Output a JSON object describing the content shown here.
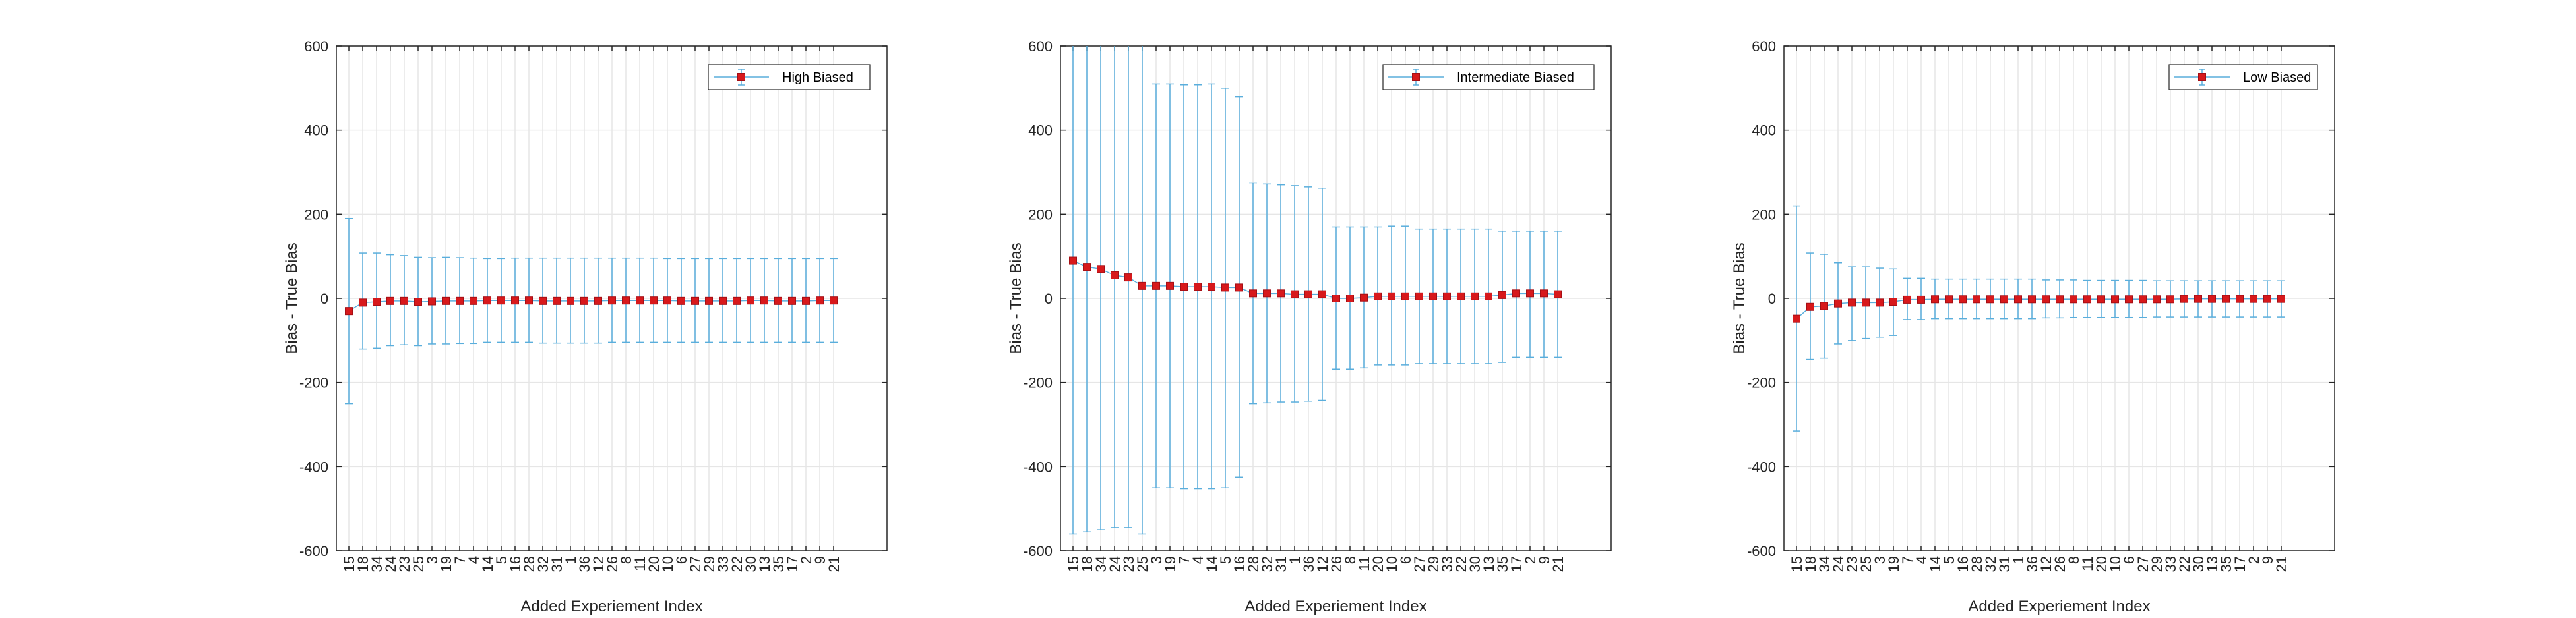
{
  "figure": {
    "background": "#ffffff"
  },
  "style": {
    "grid_color": "#e6e6e6",
    "axis_color": "#262626",
    "marker_color": "#d7191c",
    "marker_edge": "#a50f15",
    "errorbar_color": "#5aaedc",
    "line_color": "#5aaedc"
  },
  "chart_data": [
    {
      "type": "line",
      "xlabel": "Added Experiement Index",
      "ylabel": "Bias - True Bias",
      "ylim": [
        -600,
        600
      ],
      "yticks": [
        -600,
        -400,
        -200,
        0,
        200,
        400,
        600
      ],
      "grid": true,
      "legend": "top-right",
      "categories": [
        "15",
        "18",
        "34",
        "24",
        "23",
        "25",
        "3",
        "19",
        "7",
        "4",
        "14",
        "5",
        "16",
        "28",
        "32",
        "31",
        "1",
        "36",
        "12",
        "26",
        "8",
        "11",
        "20",
        "10",
        "6",
        "27",
        "29",
        "33",
        "22",
        "30",
        "13",
        "35",
        "17",
        "2",
        "9",
        "21"
      ],
      "series": [
        {
          "name": "High Biased",
          "values": [
            -30,
            -10,
            -8,
            -6,
            -6,
            -8,
            -7,
            -6,
            -6,
            -6,
            -5,
            -5,
            -5,
            -5,
            -6,
            -6,
            -6,
            -6,
            -6,
            -5,
            -5,
            -5,
            -5,
            -5,
            -6,
            -6,
            -6,
            -6,
            -6,
            -5,
            -5,
            -6,
            -6,
            -6,
            -5,
            -5
          ],
          "upper": [
            190,
            108,
            108,
            104,
            102,
            98,
            97,
            98,
            97,
            96,
            95,
            95,
            96,
            96,
            96,
            96,
            96,
            96,
            96,
            96,
            96,
            96,
            96,
            95,
            95,
            95,
            95,
            95,
            95,
            95,
            95,
            95,
            95,
            95,
            95,
            95
          ],
          "lower": [
            -250,
            -120,
            -118,
            -112,
            -110,
            -112,
            -108,
            -108,
            -107,
            -107,
            -104,
            -104,
            -104,
            -104,
            -106,
            -106,
            -106,
            -106,
            -106,
            -104,
            -104,
            -104,
            -104,
            -104,
            -104,
            -104,
            -104,
            -104,
            -104,
            -104,
            -104,
            -104,
            -104,
            -104,
            -104,
            -104
          ]
        }
      ]
    },
    {
      "type": "line",
      "xlabel": "Added Experiement Index",
      "ylabel": "Bias - True Bias",
      "ylim": [
        -600,
        600
      ],
      "yticks": [
        -600,
        -400,
        -200,
        0,
        200,
        400,
        600
      ],
      "grid": true,
      "legend": "top-right",
      "categories": [
        "15",
        "18",
        "34",
        "24",
        "23",
        "25",
        "3",
        "19",
        "7",
        "4",
        "14",
        "5",
        "16",
        "28",
        "32",
        "31",
        "1",
        "36",
        "12",
        "26",
        "8",
        "11",
        "20",
        "10",
        "6",
        "27",
        "29",
        "33",
        "22",
        "30",
        "13",
        "35",
        "17",
        "2",
        "9",
        "21"
      ],
      "series": [
        {
          "name": "Intermediate Biased",
          "values": [
            90,
            75,
            70,
            55,
            50,
            30,
            30,
            30,
            28,
            28,
            28,
            26,
            26,
            12,
            12,
            12,
            10,
            10,
            10,
            0,
            0,
            2,
            5,
            5,
            5,
            5,
            5,
            5,
            5,
            5,
            5,
            8,
            12,
            12,
            12,
            10
          ],
          "upper": [
            620,
            620,
            620,
            620,
            620,
            620,
            510,
            510,
            508,
            508,
            510,
            500,
            480,
            275,
            272,
            270,
            268,
            265,
            262,
            170,
            170,
            170,
            170,
            172,
            172,
            165,
            165,
            165,
            165,
            165,
            165,
            160,
            160,
            160,
            160,
            160
          ],
          "lower": [
            -560,
            -555,
            -550,
            -545,
            -545,
            -560,
            -450,
            -450,
            -452,
            -452,
            -452,
            -450,
            -425,
            -250,
            -248,
            -246,
            -246,
            -244,
            -242,
            -168,
            -168,
            -165,
            -158,
            -158,
            -158,
            -155,
            -155,
            -155,
            -155,
            -155,
            -155,
            -152,
            -140,
            -140,
            -140,
            -140
          ]
        }
      ]
    },
    {
      "type": "line",
      "xlabel": "Added Experiement Index",
      "ylabel": "Bias - True Bias",
      "ylim": [
        -600,
        600
      ],
      "yticks": [
        -600,
        -400,
        -200,
        0,
        200,
        400,
        600
      ],
      "grid": true,
      "legend": "top-right",
      "categories": [
        "15",
        "18",
        "34",
        "24",
        "23",
        "25",
        "3",
        "19",
        "7",
        "4",
        "14",
        "5",
        "16",
        "28",
        "32",
        "31",
        "1",
        "36",
        "12",
        "26",
        "8",
        "11",
        "20",
        "10",
        "6",
        "27",
        "29",
        "33",
        "22",
        "30",
        "13",
        "35",
        "17",
        "2",
        "9",
        "21"
      ],
      "series": [
        {
          "name": "Low Biased",
          "values": [
            -48,
            -20,
            -18,
            -12,
            -10,
            -10,
            -10,
            -8,
            -3,
            -3,
            -2,
            -2,
            -2,
            -2,
            -2,
            -2,
            -2,
            -2,
            -2,
            -2,
            -2,
            -2,
            -2,
            -2,
            -2,
            -2,
            -2,
            -2,
            -1,
            -1,
            -1,
            -1,
            -1,
            -1,
            -1,
            -1
          ],
          "upper": [
            220,
            108,
            105,
            85,
            75,
            75,
            72,
            70,
            48,
            48,
            46,
            46,
            46,
            46,
            46,
            46,
            46,
            46,
            44,
            44,
            44,
            43,
            43,
            43,
            43,
            43,
            42,
            42,
            42,
            42,
            42,
            42,
            42,
            42,
            42,
            42
          ],
          "lower": [
            -315,
            -145,
            -142,
            -108,
            -100,
            -95,
            -92,
            -88,
            -50,
            -50,
            -48,
            -48,
            -48,
            -48,
            -48,
            -48,
            -48,
            -48,
            -46,
            -46,
            -45,
            -45,
            -45,
            -45,
            -45,
            -45,
            -44,
            -44,
            -44,
            -44,
            -44,
            -44,
            -44,
            -44,
            -44,
            -44
          ]
        }
      ]
    }
  ]
}
